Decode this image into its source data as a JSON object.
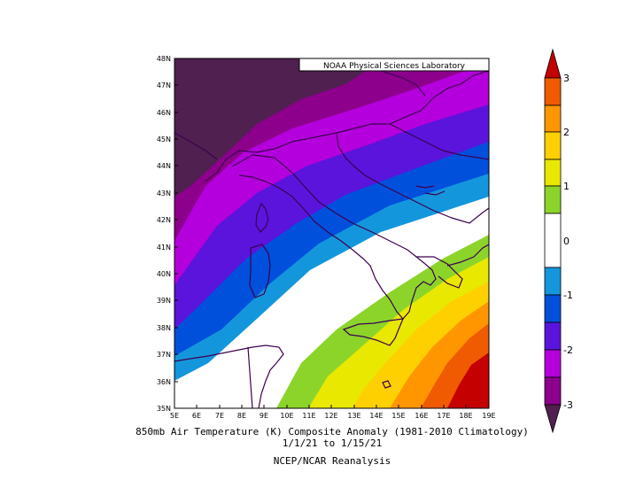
{
  "credit": "NOAA Physical Sciences Laboratory",
  "caption": {
    "line1": "850mb Air Temperature (K) Composite Anomaly (1981-2010 Climatology)",
    "line2": "1/1/21  to 1/15/21",
    "line3": "NCEP/NCAR Reanalysis"
  },
  "map": {
    "lon_labels": [
      "5E",
      "6E",
      "7E",
      "8E",
      "9E",
      "10E",
      "11E",
      "12E",
      "13E",
      "14E",
      "15E",
      "16E",
      "17E",
      "18E",
      "19E"
    ],
    "lat_labels": [
      "48N",
      "47N",
      "46N",
      "45N",
      "44N",
      "43N",
      "42N",
      "41N",
      "40N",
      "39N",
      "38N",
      "37N",
      "36N",
      "35N"
    ]
  },
  "colorbar": {
    "labels": [
      "3",
      "2",
      "1",
      "0",
      "-1",
      "-2",
      "-3"
    ],
    "colors_top_to_bottom": [
      "#c40000",
      "#f05a00",
      "#ff9600",
      "#ffd000",
      "#e8e800",
      "#8cd42a",
      "#ffffff",
      "#1496dc",
      "#0050dc",
      "#5a14dc",
      "#b400dc",
      "#8c008c",
      "#502050"
    ]
  },
  "colors": {
    "coast": "#3c0050",
    "frame": "#000000"
  }
}
